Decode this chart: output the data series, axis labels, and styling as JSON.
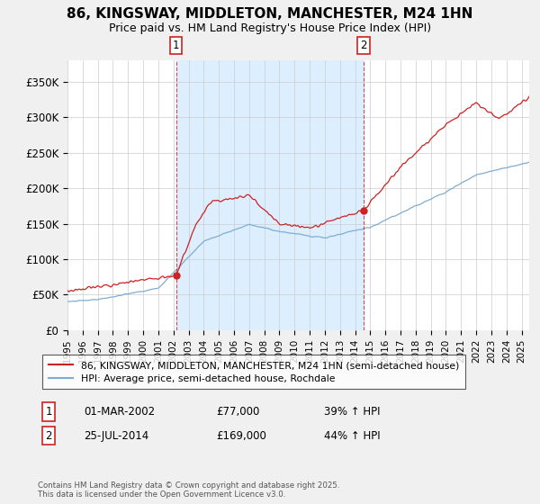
{
  "title_line1": "86, KINGSWAY, MIDDLETON, MANCHESTER, M24 1HN",
  "title_line2": "Price paid vs. HM Land Registry's House Price Index (HPI)",
  "ylim": [
    0,
    380000
  ],
  "yticks": [
    0,
    50000,
    100000,
    150000,
    200000,
    250000,
    300000,
    350000
  ],
  "ytick_labels": [
    "£0",
    "£50K",
    "£100K",
    "£150K",
    "£200K",
    "£250K",
    "£300K",
    "£350K"
  ],
  "hpi_color": "#7eadd4",
  "price_color": "#cc2222",
  "shade_color": "#ddeeff",
  "marker1_x": 2002.17,
  "marker1_y": 77000,
  "marker2_x": 2014.56,
  "marker2_y": 169000,
  "annotation1": [
    "1",
    "01-MAR-2002",
    "£77,000",
    "39% ↑ HPI"
  ],
  "annotation2": [
    "2",
    "25-JUL-2014",
    "£169,000",
    "44% ↑ HPI"
  ],
  "legend_label1": "86, KINGSWAY, MIDDLETON, MANCHESTER, M24 1HN (semi-detached house)",
  "legend_label2": "HPI: Average price, semi-detached house, Rochdale",
  "footnote": "Contains HM Land Registry data © Crown copyright and database right 2025.\nThis data is licensed under the Open Government Licence v3.0.",
  "bg_color": "#f0f0f0",
  "plot_bg_color": "#ffffff",
  "xlim_start": 1995,
  "xlim_end": 2025.5
}
